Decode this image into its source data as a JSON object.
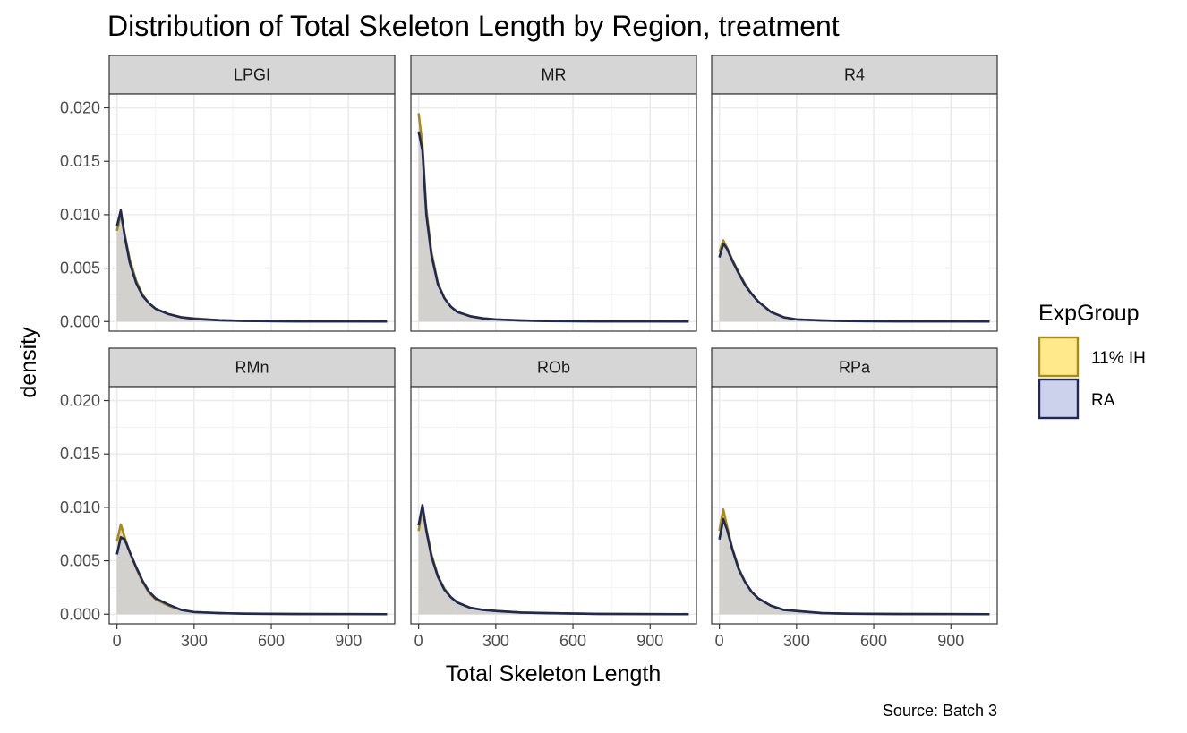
{
  "chart_data": {
    "type": "area",
    "title": "Distribution of Total Skeleton Length by Region, treatment",
    "xlabel": "Total Skeleton Length",
    "ylabel": "density",
    "caption": "Source: Batch 3",
    "xlim": [
      -30,
      1080
    ],
    "ylim": [
      -0.0009,
      0.0213
    ],
    "x_ticks": [
      0,
      300,
      600,
      900
    ],
    "x_tick_labels": [
      "0",
      "300",
      "600",
      "900"
    ],
    "y_ticks": [
      0,
      0.005,
      0.01,
      0.015,
      0.02
    ],
    "y_tick_labels": [
      "0.000",
      "0.005",
      "0.010",
      "0.015",
      "0.020"
    ],
    "grid": true,
    "legend": {
      "title": "ExpGroup",
      "position": "right",
      "items": [
        {
          "label": "11% IH",
          "fill": "#FFE98A",
          "line": "#A88B12"
        },
        {
          "label": "RA",
          "fill": "#CCD2EC",
          "line": "#1E2A55"
        }
      ]
    },
    "area_fill": "#cfcecb",
    "x": [
      0,
      15,
      30,
      50,
      75,
      100,
      125,
      150,
      200,
      250,
      300,
      400,
      500,
      700,
      900,
      1050
    ],
    "panels": [
      {
        "label": "LPGI",
        "series": [
          {
            "name": "11% IH",
            "values": [
              0.0085,
              0.0101,
              0.0082,
              0.0058,
              0.0038,
              0.0025,
              0.0017,
              0.0012,
              0.0007,
              0.0004,
              0.0003,
              0.00012,
              6e-05,
              2e-05,
              1e-05,
              0.0
            ]
          },
          {
            "name": "RA",
            "values": [
              0.0089,
              0.0104,
              0.008,
              0.0055,
              0.0036,
              0.0024,
              0.0017,
              0.0012,
              0.0007,
              0.0004,
              0.00025,
              0.00012,
              6e-05,
              2e-05,
              1e-05,
              0.0
            ]
          }
        ]
      },
      {
        "label": "MR",
        "series": [
          {
            "name": "11% IH",
            "values": [
              0.0195,
              0.0165,
              0.0105,
              0.0065,
              0.0036,
              0.0022,
              0.0014,
              0.0009,
              0.0005,
              0.0003,
              0.0002,
              0.0001,
              5e-05,
              2e-05,
              1e-05,
              0.0
            ]
          },
          {
            "name": "RA",
            "values": [
              0.0178,
              0.016,
              0.01,
              0.0062,
              0.0035,
              0.0022,
              0.0014,
              0.0009,
              0.0005,
              0.0003,
              0.0002,
              0.0001,
              5e-05,
              2e-05,
              1e-05,
              0.0
            ]
          }
        ]
      },
      {
        "label": "R4",
        "series": [
          {
            "name": "11% IH",
            "values": [
              0.0065,
              0.0076,
              0.0069,
              0.0058,
              0.0046,
              0.0035,
              0.0026,
              0.0019,
              0.0009,
              0.0004,
              0.0002,
              0.0001,
              5e-05,
              2e-05,
              1e-05,
              0.0
            ]
          },
          {
            "name": "RA",
            "values": [
              0.006,
              0.0073,
              0.0068,
              0.0057,
              0.0045,
              0.0034,
              0.0026,
              0.0019,
              0.0009,
              0.0004,
              0.0002,
              0.0001,
              5e-05,
              2e-05,
              1e-05,
              0.0
            ]
          }
        ]
      },
      {
        "label": "RMn",
        "series": [
          {
            "name": "11% IH",
            "values": [
              0.0068,
              0.0084,
              0.0072,
              0.0058,
              0.0043,
              0.003,
              0.002,
              0.0014,
              0.0008,
              0.0004,
              0.0002,
              0.0001,
              5e-05,
              2e-05,
              1e-05,
              0.0
            ]
          },
          {
            "name": "RA",
            "values": [
              0.0056,
              0.0072,
              0.007,
              0.0058,
              0.0044,
              0.0031,
              0.0021,
              0.0015,
              0.0009,
              0.0004,
              0.0002,
              0.0001,
              5e-05,
              2e-05,
              1e-05,
              0.0
            ]
          }
        ]
      },
      {
        "label": "ROb",
        "series": [
          {
            "name": "11% IH",
            "values": [
              0.0078,
              0.01,
              0.008,
              0.0056,
              0.0036,
              0.0024,
              0.0016,
              0.0011,
              0.0006,
              0.0004,
              0.0003,
              0.00015,
              0.0001,
              3e-05,
              1e-05,
              0.0
            ]
          },
          {
            "name": "RA",
            "values": [
              0.0083,
              0.0102,
              0.0078,
              0.0054,
              0.0035,
              0.0023,
              0.0016,
              0.0011,
              0.0006,
              0.0004,
              0.0003,
              0.00015,
              0.0001,
              3e-05,
              1e-05,
              0.0
            ]
          }
        ]
      },
      {
        "label": "RPa",
        "series": [
          {
            "name": "11% IH",
            "values": [
              0.0078,
              0.0098,
              0.0082,
              0.0062,
              0.0043,
              0.003,
              0.0021,
              0.0015,
              0.0008,
              0.0004,
              0.0003,
              0.0001,
              5e-05,
              2e-05,
              1e-05,
              0.0
            ]
          },
          {
            "name": "RA",
            "values": [
              0.007,
              0.0089,
              0.0079,
              0.0061,
              0.0042,
              0.003,
              0.0021,
              0.0015,
              0.0008,
              0.0004,
              0.0003,
              0.0001,
              5e-05,
              2e-05,
              1e-05,
              0.0
            ]
          }
        ]
      }
    ]
  }
}
